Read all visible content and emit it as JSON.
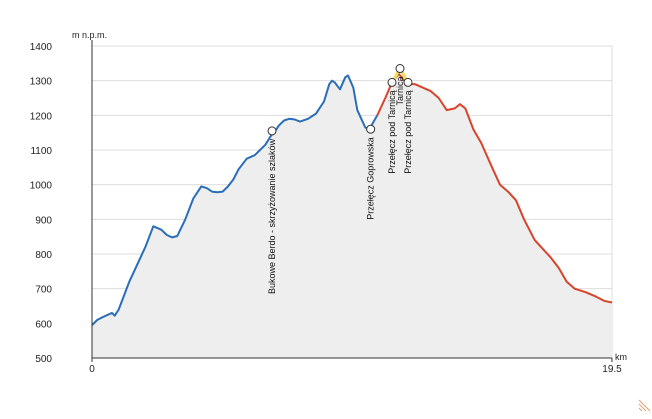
{
  "chart_data": {
    "type": "area",
    "title": "",
    "ylabel": "m n.p.m.",
    "xlabel": "km",
    "xlim": [
      0,
      19.5
    ],
    "ylim": [
      500,
      1400
    ],
    "yticks": [
      500,
      600,
      700,
      800,
      900,
      1000,
      1100,
      1200,
      1300,
      1400
    ],
    "xtick_labels": [
      {
        "value": 0,
        "label": "0"
      },
      {
        "value": 19.5,
        "label": "19.5"
      }
    ],
    "grid": "horizontal",
    "fill_color": "#eeeeee",
    "series": [
      {
        "color": "#2a6db8",
        "x": [
          0,
          0.2,
          0.4,
          0.6,
          0.75,
          0.85,
          1.0,
          1.2,
          1.4,
          1.7,
          2.0,
          2.3,
          2.6,
          2.8,
          3.0,
          3.2,
          3.5,
          3.8,
          4.1,
          4.3,
          4.5,
          4.7,
          4.9,
          5.1,
          5.3,
          5.5,
          5.8,
          6.1,
          6.3,
          6.5,
          6.7,
          6.9,
          7.0,
          7.2,
          7.4,
          7.6,
          7.8,
          8.1,
          8.4,
          8.7,
          8.9,
          9.0,
          9.1,
          9.3,
          9.5,
          9.6,
          9.8,
          9.95,
          10.1,
          10.25,
          10.4,
          10.7
        ],
        "y": [
          595,
          610,
          618,
          625,
          630,
          622,
          640,
          680,
          720,
          770,
          820,
          880,
          870,
          855,
          848,
          852,
          900,
          960,
          995,
          990,
          980,
          978,
          980,
          995,
          1015,
          1045,
          1075,
          1085,
          1100,
          1115,
          1140,
          1158,
          1170,
          1185,
          1190,
          1188,
          1182,
          1190,
          1205,
          1240,
          1290,
          1300,
          1295,
          1275,
          1310,
          1315,
          1280,
          1215,
          1190,
          1165,
          1160,
          1200
        ]
      },
      {
        "color": "#d9432a",
        "x": [
          10.7,
          11.0,
          11.25,
          11.5,
          11.7,
          11.9,
          12.1,
          12.4,
          12.7,
          13.0,
          13.3,
          13.6,
          13.8,
          14.0,
          14.3,
          14.6,
          15.0,
          15.3,
          15.6,
          15.9,
          16.2,
          16.6,
          16.9,
          17.2,
          17.5,
          17.8,
          18.1,
          18.5,
          18.9,
          19.2,
          19.5
        ],
        "y": [
          1200,
          1250,
          1295,
          1320,
          1300,
          1290,
          1290,
          1280,
          1270,
          1250,
          1215,
          1220,
          1232,
          1220,
          1160,
          1120,
          1050,
          1000,
          980,
          955,
          900,
          840,
          815,
          790,
          760,
          720,
          700,
          690,
          677,
          665,
          660
        ]
      }
    ],
    "highlight": {
      "color": "#f0e060",
      "x": [
        11.25,
        11.55,
        11.85
      ],
      "y": [
        1295,
        1335,
        1295
      ]
    },
    "waypoints": [
      {
        "x": 6.75,
        "y": 1155,
        "label": "Bukowe Berdo - skrzyżowanie szlaków"
      },
      {
        "x": 10.45,
        "y": 1160,
        "label": "Przełęcz Goprowska"
      },
      {
        "x": 11.25,
        "y": 1295,
        "label": "Przełęcz pod Tarnicą"
      },
      {
        "x": 11.55,
        "y": 1335,
        "label": "Tarnica"
      },
      {
        "x": 11.85,
        "y": 1295,
        "label": "Przełęcz pod Tarnicą"
      }
    ]
  }
}
